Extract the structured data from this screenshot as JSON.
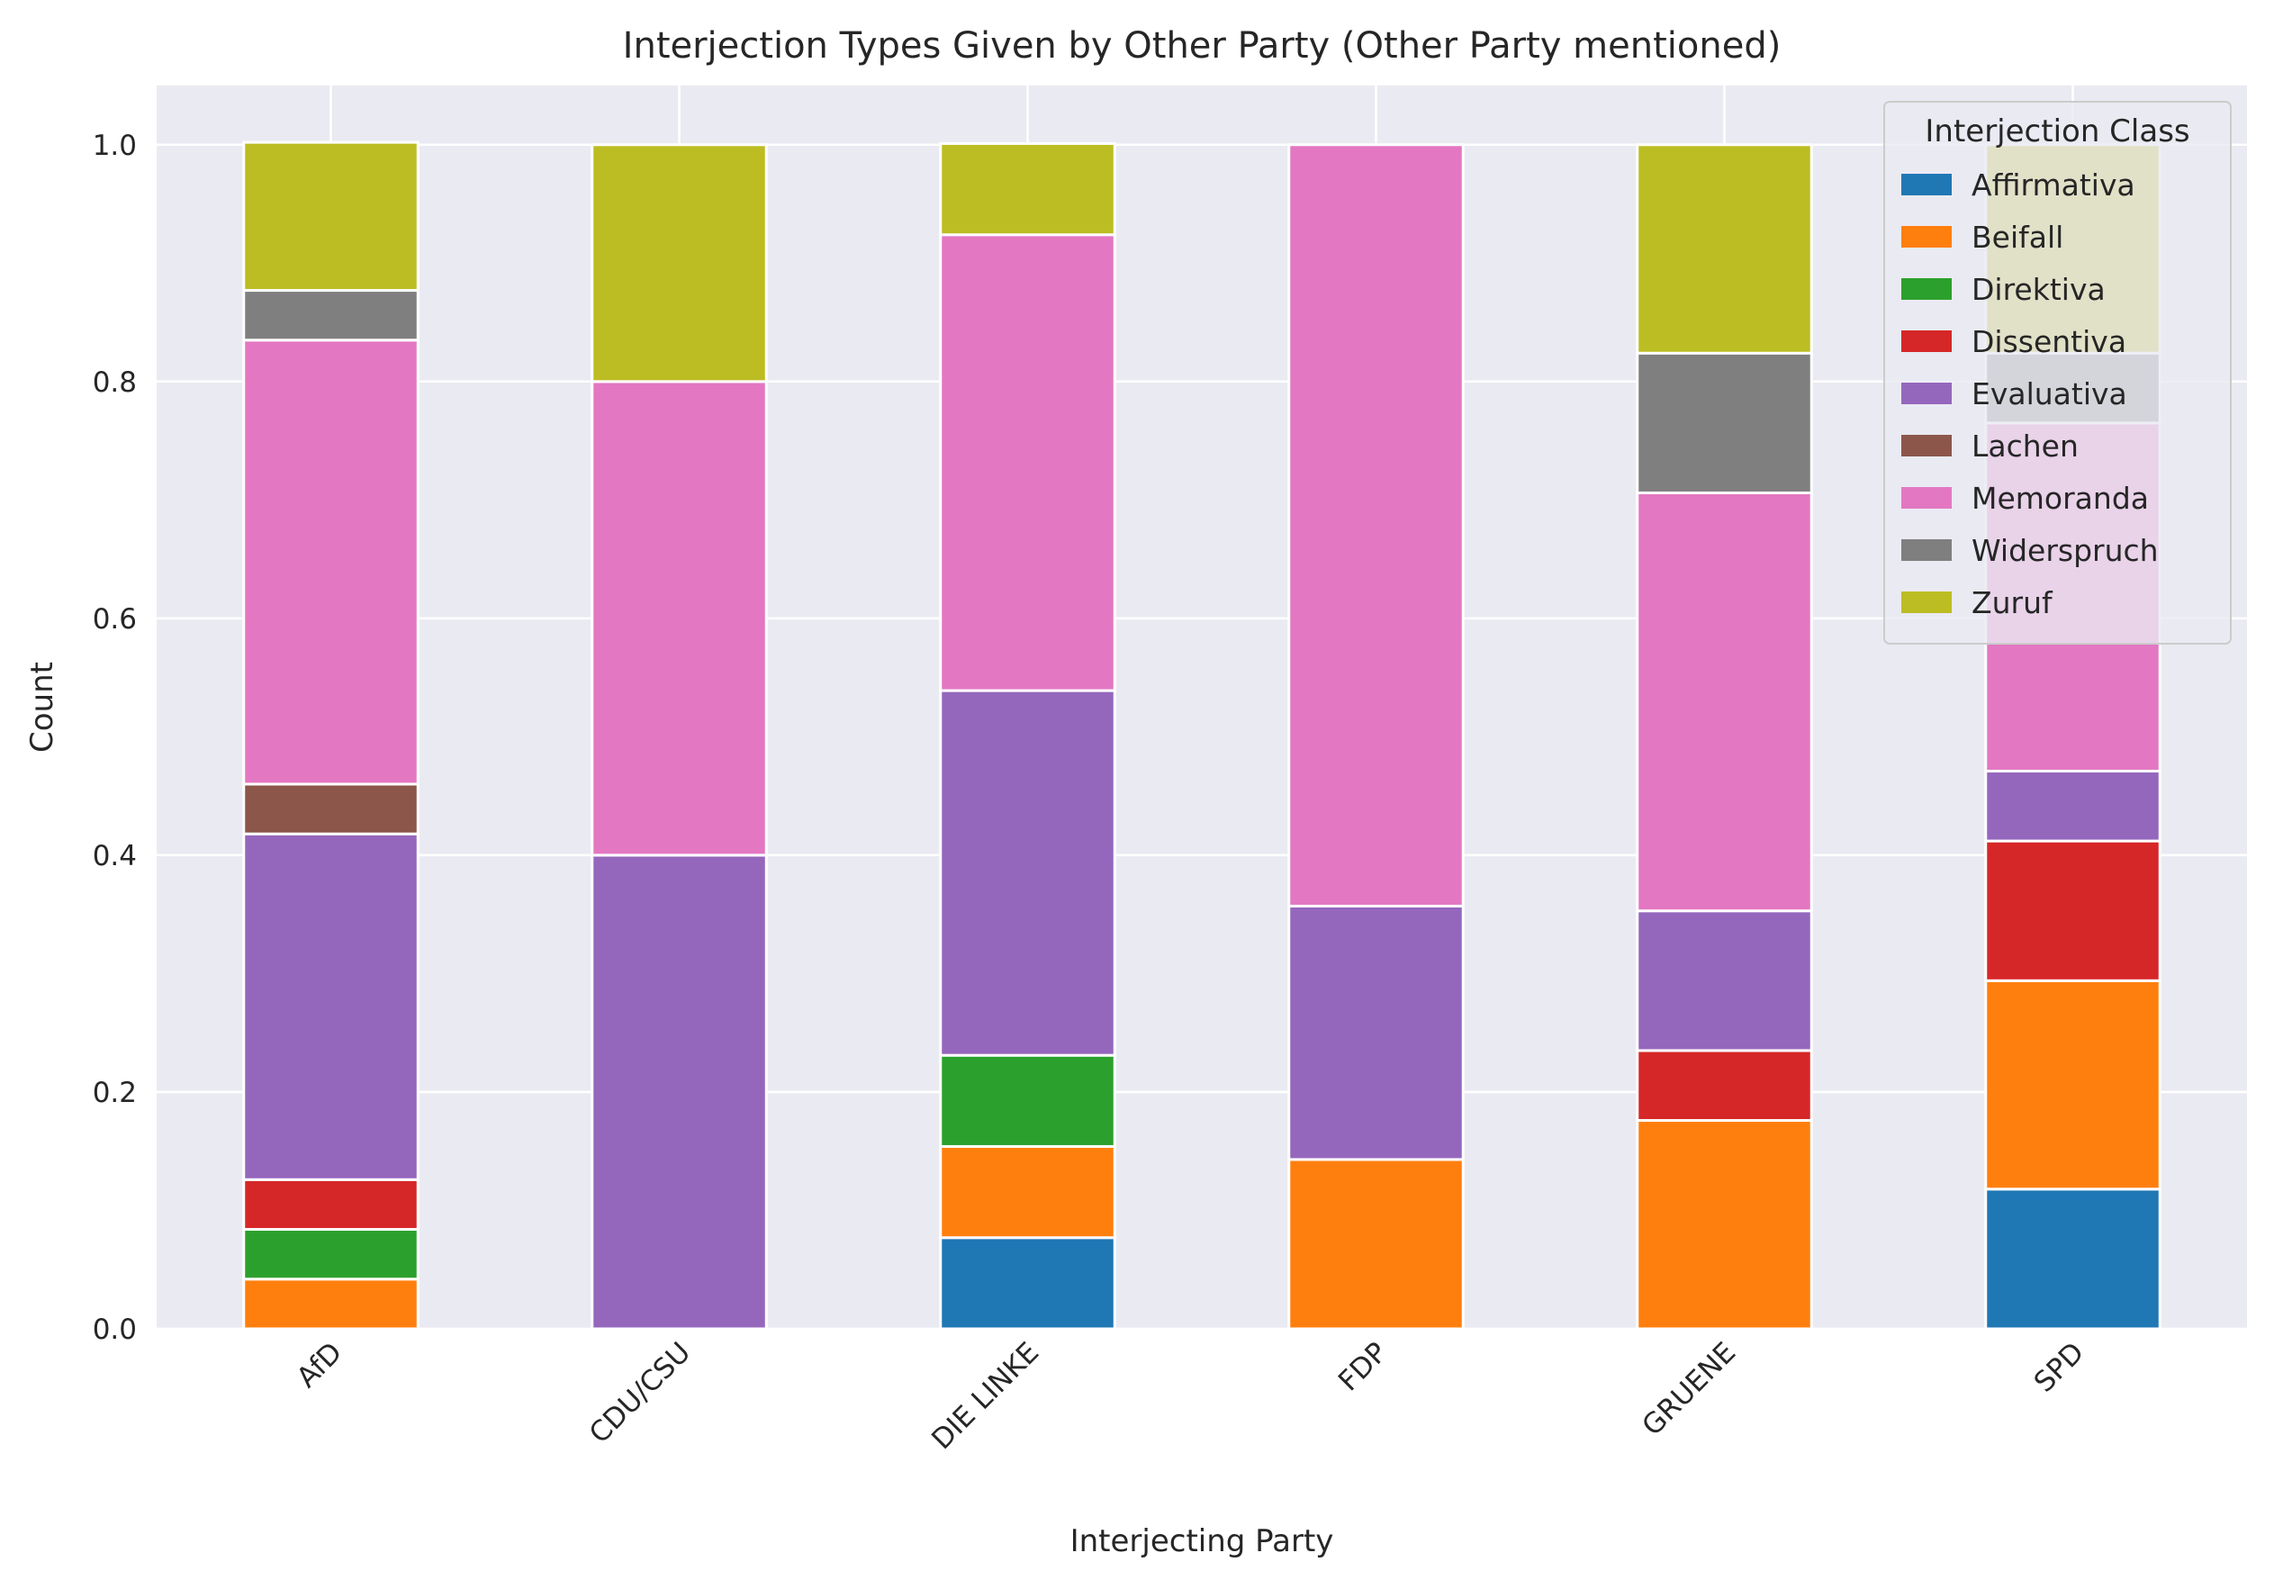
{
  "chart_data": {
    "type": "bar",
    "stacked": true,
    "title": "Interjection Types Given by Other Party (Other Party mentioned)",
    "xlabel": "Interjecting Party",
    "ylabel": "Count",
    "ylim": [
      0,
      1.05
    ],
    "yticks": [
      "0.0",
      "0.2",
      "0.4",
      "0.6",
      "0.8",
      "1.0"
    ],
    "grid": true,
    "legend": {
      "title": "Interjection Class",
      "placement": "top-right"
    },
    "categories": [
      "AfD",
      "CDU/CSU",
      "DIE LINKE",
      "FDP",
      "GRUENE",
      "SPD"
    ],
    "series": [
      {
        "name": "Affirmativa",
        "color": "#1f77b4",
        "values": [
          0,
          0,
          0.077,
          0,
          0,
          0.118
        ]
      },
      {
        "name": "Beifall",
        "color": "#ff7f0e",
        "values": [
          0.042,
          0,
          0.077,
          0.143,
          0.176,
          0.176
        ]
      },
      {
        "name": "Direktiva",
        "color": "#2ca02c",
        "values": [
          0.042,
          0,
          0.077,
          0,
          0,
          0
        ]
      },
      {
        "name": "Dissentiva",
        "color": "#d62728",
        "values": [
          0.042,
          0,
          0,
          0,
          0.059,
          0.118
        ]
      },
      {
        "name": "Evaluativa",
        "color": "#9467bd",
        "values": [
          0.292,
          0.4,
          0.308,
          0.214,
          0.118,
          0.059
        ]
      },
      {
        "name": "Lachen",
        "color": "#8c564b",
        "values": [
          0.042,
          0,
          0,
          0,
          0,
          0
        ]
      },
      {
        "name": "Memoranda",
        "color": "#e377c2",
        "values": [
          0.375,
          0.4,
          0.385,
          0.643,
          0.353,
          0.294
        ]
      },
      {
        "name": "Widerspruch",
        "color": "#7f7f7f",
        "values": [
          0.042,
          0,
          0,
          0,
          0.118,
          0.059
        ]
      },
      {
        "name": "Zuruf",
        "color": "#bcbd22",
        "values": [
          0.125,
          0.2,
          0.077,
          0,
          0.176,
          0.176
        ]
      }
    ]
  }
}
